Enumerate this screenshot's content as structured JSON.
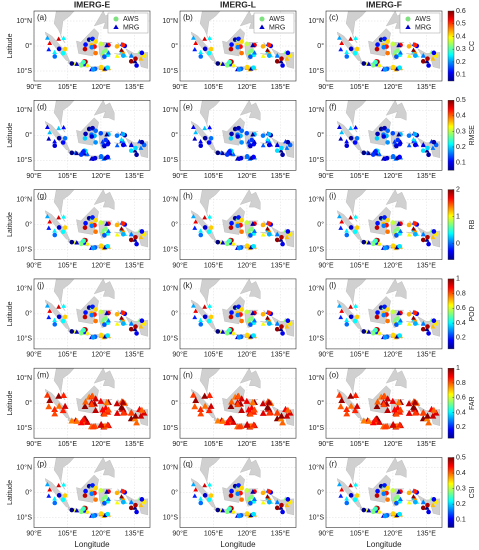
{
  "column_titles": [
    "IMERG-E",
    "IMERG-L",
    "IMERG-F"
  ],
  "panel_labels": [
    "(a)",
    "(b)",
    "(c)",
    "(d)",
    "(e)",
    "(f)",
    "(g)",
    "(h)",
    "(i)",
    "(j)",
    "(k)",
    "(l)",
    "(m)",
    "(n)",
    "(o)",
    "(p)",
    "(q)",
    "(r)"
  ],
  "axes": {
    "y_label": "Latitude",
    "x_label": "Longitude",
    "ylim": [
      -14,
      14
    ],
    "xlim": [
      90,
      142
    ],
    "yticks": [
      {
        "value": 10,
        "label": "10°N"
      },
      {
        "value": 0,
        "label": "0°"
      },
      {
        "value": -10,
        "label": "10°S"
      }
    ],
    "xticks": [
      {
        "value": 90,
        "label": "90°E"
      },
      {
        "value": 105,
        "label": "105°E"
      },
      {
        "value": 120,
        "label": "120°E"
      },
      {
        "value": 135,
        "label": "135°E"
      }
    ]
  },
  "legend": [
    "AWS",
    "MRG"
  ],
  "rows": [
    {
      "metric": "CC",
      "clim": [
        0.05,
        0.6
      ],
      "cticks": [
        0.1,
        0.2,
        0.3,
        0.4,
        0.5,
        0.6
      ]
    },
    {
      "metric": "RMSE",
      "clim": [
        0.05,
        0.5
      ],
      "cticks": [
        0.1,
        0.2,
        0.3,
        0.4,
        0.5
      ]
    },
    {
      "metric": "RB",
      "clim": [
        -0.6,
        2
      ],
      "cticks": [
        0,
        1,
        2
      ]
    },
    {
      "metric": "POD",
      "clim": [
        0.05,
        1
      ],
      "cticks": [
        0.2,
        0.4,
        0.6,
        0.8,
        1
      ]
    },
    {
      "metric": "FAR",
      "clim": [
        0.05,
        1
      ],
      "cticks": [
        0.2,
        0.4,
        0.6,
        0.8,
        1
      ]
    },
    {
      "metric": "CSI",
      "clim": [
        0.05,
        0.5
      ],
      "cticks": [
        0.1,
        0.2,
        0.3,
        0.4,
        0.5
      ]
    }
  ]
}
